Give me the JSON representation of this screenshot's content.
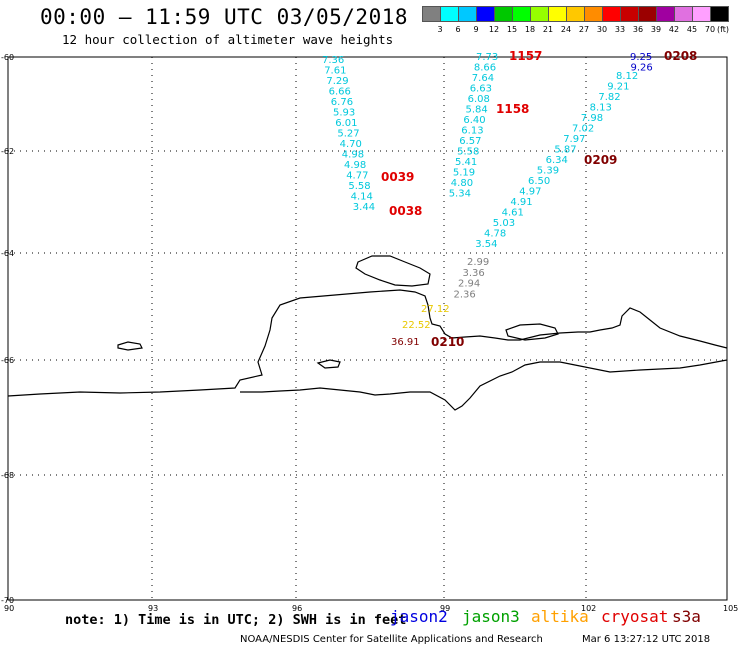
{
  "title": "00:00 – 11:59 UTC 03/05/2018",
  "subtitle": "12 hour collection of altimeter wave heights",
  "colorbar": {
    "unit": "(ft)",
    "colors": [
      "#808080",
      "#00ffff",
      "#00c8ff",
      "#0000ff",
      "#00c800",
      "#00ff00",
      "#96ff00",
      "#ffff00",
      "#ffc800",
      "#ff8c00",
      "#ff0000",
      "#c80000",
      "#9b0000",
      "#a000a0",
      "#e070e0",
      "#ffa0ff",
      "#000000"
    ],
    "labels": [
      "3",
      "6",
      "9",
      "12",
      "15",
      "18",
      "21",
      "24",
      "27",
      "30",
      "33",
      "36",
      "39",
      "42",
      "45",
      "70"
    ]
  },
  "axes": {
    "lat_labels": [
      "-60",
      "-62",
      "-64",
      "-66",
      "-68",
      "-70"
    ],
    "lon_labels": [
      "90",
      "93",
      "96",
      "99",
      "102",
      "105"
    ]
  },
  "tracks": [
    {
      "name": "track-a",
      "color": "#00c8dc",
      "values": [
        "7.36",
        "7.61",
        "7.29",
        "6.66",
        "6.76",
        "5.93",
        "6.01",
        "5.27",
        "4.70",
        "4.98",
        "4.98",
        "4.77",
        "5.58",
        "4.14",
        "3.44"
      ]
    },
    {
      "name": "track-b",
      "color": "#00c8dc",
      "values": [
        "7.73",
        "8.66",
        "7.64",
        "6.63",
        "6.08",
        "5.84",
        "6.40",
        "6.13",
        "6.57",
        "5.58",
        "5.41",
        "5.19",
        "4.80",
        "5.34"
      ]
    },
    {
      "name": "track-c-upper",
      "color": "#0000c8",
      "values": [
        "9.25",
        "9.26"
      ]
    },
    {
      "name": "track-c-mid",
      "color": "#00c8dc",
      "values": [
        "8.12",
        "9.21",
        "7.82",
        "8.13",
        "7.98",
        "7.02",
        "7.97",
        "5.87",
        "6.34",
        "5.39",
        "6.50",
        "4.97",
        "4.91",
        "4.61",
        "5.03",
        "4.78",
        "3.54"
      ]
    },
    {
      "name": "track-c-low",
      "color": "#808080",
      "values": [
        "2.99",
        "3.36",
        "2.94",
        "2.36"
      ]
    },
    {
      "name": "track-c-warm",
      "color": "#e8c800",
      "values": [
        "27.12",
        "22.52"
      ]
    },
    {
      "name": "track-c-dark",
      "color": "#800000",
      "values": [
        "36.91"
      ]
    }
  ],
  "time_labels": [
    {
      "text": "1157",
      "color": "#e00000"
    },
    {
      "text": "1158",
      "color": "#e00000"
    },
    {
      "text": "0039",
      "color": "#e00000"
    },
    {
      "text": "0038",
      "color": "#e00000"
    },
    {
      "text": "0208",
      "color": "#800000"
    },
    {
      "text": "0209",
      "color": "#800000"
    },
    {
      "text": "0210",
      "color": "#800000"
    }
  ],
  "note": "note: 1) Time is in UTC; 2) SWH is in feet",
  "satellites": [
    {
      "name": "jason2",
      "color": "#0000e0"
    },
    {
      "name": "jason3",
      "color": "#00a000"
    },
    {
      "name": "altika",
      "color": "#ffa000"
    },
    {
      "name": "cryosat",
      "color": "#e00000"
    },
    {
      "name": "s3a",
      "color": "#800000"
    }
  ],
  "credit": "NOAA/NESDIS Center for Satellite Applications and Research",
  "timestamp": "Mar  6 13:27:12 UTC 2018"
}
